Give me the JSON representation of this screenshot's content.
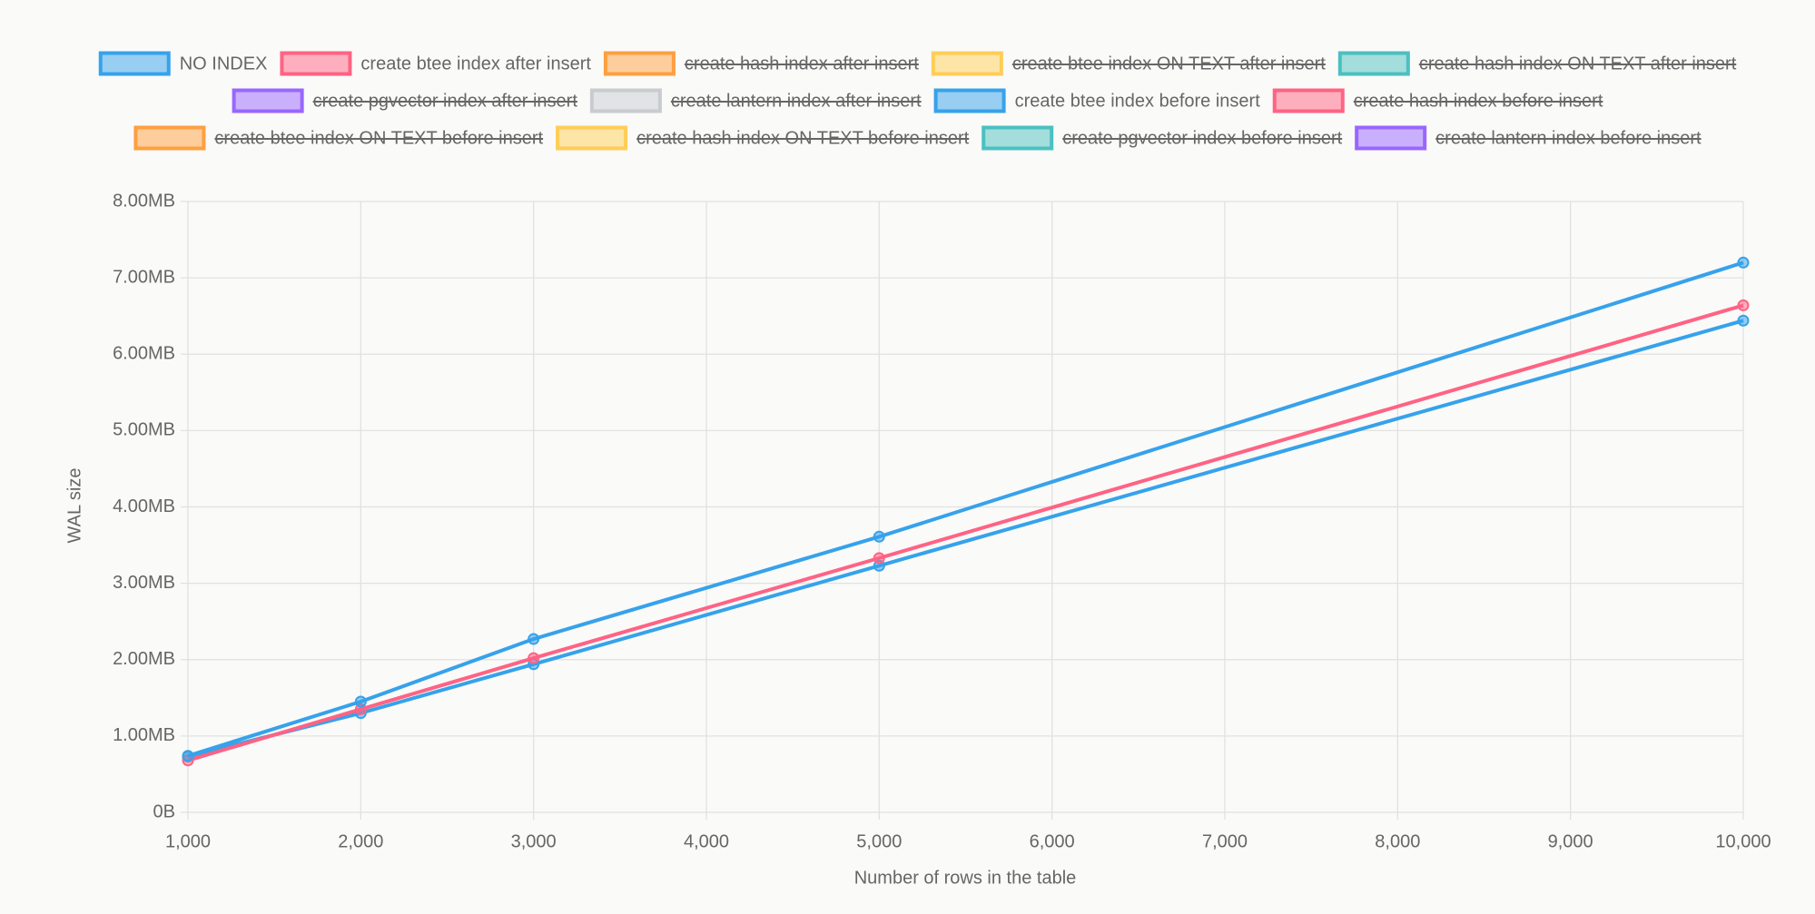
{
  "chart_data": {
    "type": "line",
    "x_label": "Number of rows in the table",
    "y_label": "WAL size",
    "x": [
      1000,
      2000,
      3000,
      5000,
      10000
    ],
    "xlim": [
      1000,
      10000
    ],
    "xticks": [
      {
        "value": 1000,
        "label": "1,000"
      },
      {
        "value": 2000,
        "label": "2,000"
      },
      {
        "value": 3000,
        "label": "3,000"
      },
      {
        "value": 4000,
        "label": "4,000"
      },
      {
        "value": 5000,
        "label": "5,000"
      },
      {
        "value": 6000,
        "label": "6,000"
      },
      {
        "value": 7000,
        "label": "7,000"
      },
      {
        "value": 8000,
        "label": "8,000"
      },
      {
        "value": 9000,
        "label": "9,000"
      },
      {
        "value": 10000,
        "label": "10,000"
      }
    ],
    "ylim": [
      0,
      8
    ],
    "yticks": [
      {
        "value": 0,
        "label": "0B"
      },
      {
        "value": 1,
        "label": "1.00MB"
      },
      {
        "value": 2,
        "label": "2.00MB"
      },
      {
        "value": 3,
        "label": "3.00MB"
      },
      {
        "value": 4,
        "label": "4.00MB"
      },
      {
        "value": 5,
        "label": "5.00MB"
      },
      {
        "value": 6,
        "label": "6.00MB"
      },
      {
        "value": 7,
        "label": "7.00MB"
      },
      {
        "value": 8,
        "label": "8.00MB"
      }
    ],
    "grid": true,
    "legend": "top",
    "series": [
      {
        "name": "NO INDEX",
        "color": "#36a2eb",
        "values": [
          0.73,
          1.3,
          1.94,
          3.23,
          6.44
        ]
      },
      {
        "name": "create btee index after insert",
        "color": "#ff6384",
        "values": [
          0.68,
          1.35,
          2.02,
          3.33,
          6.64
        ]
      },
      {
        "name": "create hash index after insert",
        "color": "#ff9f40",
        "hidden": true
      },
      {
        "name": "create btee index ON TEXT after insert",
        "color": "#ffcd56",
        "hidden": true
      },
      {
        "name": "create hash index ON TEXT after insert",
        "color": "#4bc0c0",
        "hidden": true
      },
      {
        "name": "create pgvector index after insert",
        "color": "#9966ff",
        "hidden": true
      },
      {
        "name": "create lantern index after insert",
        "color": "#c9cbcf",
        "hidden": true
      },
      {
        "name": "create btee index before insert",
        "color": "#36a2eb",
        "values": [
          0.74,
          1.45,
          2.27,
          3.61,
          7.2
        ]
      },
      {
        "name": "create hash index before insert",
        "color": "#ff6384",
        "hidden": true
      },
      {
        "name": "create btee index ON TEXT before insert",
        "color": "#ff9f40",
        "hidden": true
      },
      {
        "name": "create hash index ON TEXT before insert",
        "color": "#ffcd56",
        "hidden": true
      },
      {
        "name": "create pgvector index before insert",
        "color": "#4bc0c0",
        "hidden": true
      },
      {
        "name": "create lantern index before insert",
        "color": "#9966ff",
        "hidden": true
      }
    ]
  }
}
